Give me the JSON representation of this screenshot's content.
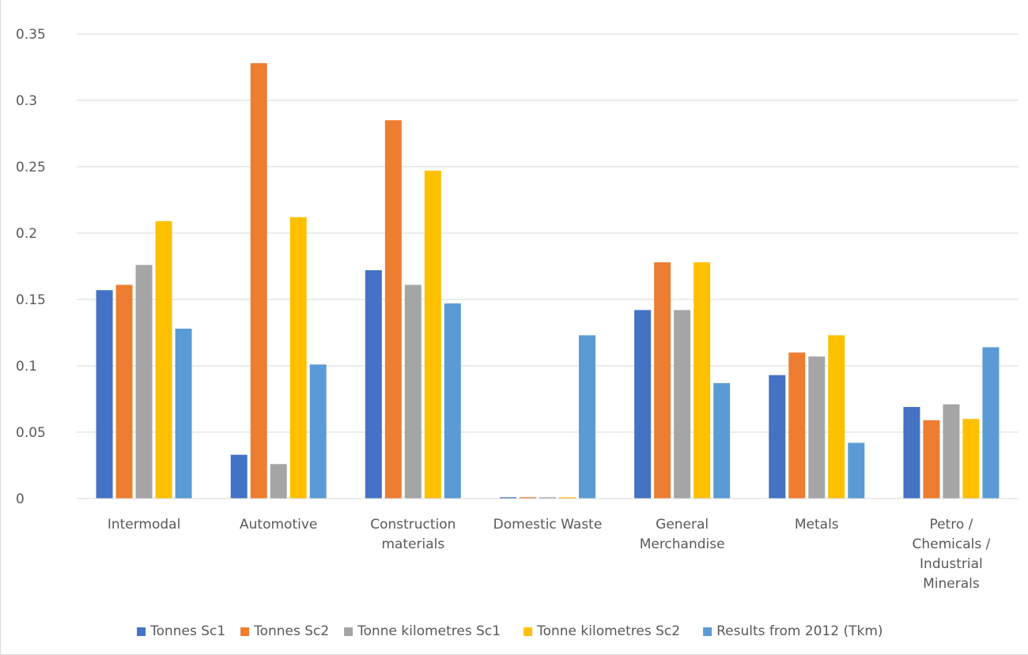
{
  "chart_data": {
    "type": "bar",
    "title": "",
    "xlabel": "",
    "ylabel": "",
    "ylim": [
      0,
      0.35
    ],
    "yticks": [
      "0",
      "0.05",
      "0.1",
      "0.15",
      "0.2",
      "0.25",
      "0.3",
      "0.35"
    ],
    "grid": true,
    "legend_position": "bottom",
    "categories": [
      [
        "Intermodal"
      ],
      [
        "Automotive"
      ],
      [
        "Construction",
        "materials"
      ],
      [
        "Domestic Waste"
      ],
      [
        "General",
        "Merchandise"
      ],
      [
        "Metals"
      ],
      [
        "Petro /",
        "Chemicals /",
        "Industrial",
        "Minerals"
      ]
    ],
    "series": [
      {
        "name": "Tonnes Sc1",
        "color": "#4472c4",
        "values": [
          0.157,
          0.033,
          0.172,
          0.001,
          0.142,
          0.093,
          0.069
        ]
      },
      {
        "name": "Tonnes Sc2",
        "color": "#ed7d31",
        "values": [
          0.161,
          0.328,
          0.285,
          0.001,
          0.178,
          0.11,
          0.059
        ]
      },
      {
        "name": "Tonne kilometres Sc1",
        "color": "#a5a5a5",
        "values": [
          0.176,
          0.026,
          0.161,
          0.001,
          0.142,
          0.107,
          0.071
        ]
      },
      {
        "name": "Tonne kilometres Sc2",
        "color": "#ffc000",
        "values": [
          0.209,
          0.212,
          0.247,
          0.001,
          0.178,
          0.123,
          0.06
        ]
      },
      {
        "name": "Results from 2012 (Tkm)",
        "color": "#5b9bd5",
        "values": [
          0.128,
          0.101,
          0.147,
          0.123,
          0.087,
          0.042,
          0.114
        ]
      }
    ]
  }
}
